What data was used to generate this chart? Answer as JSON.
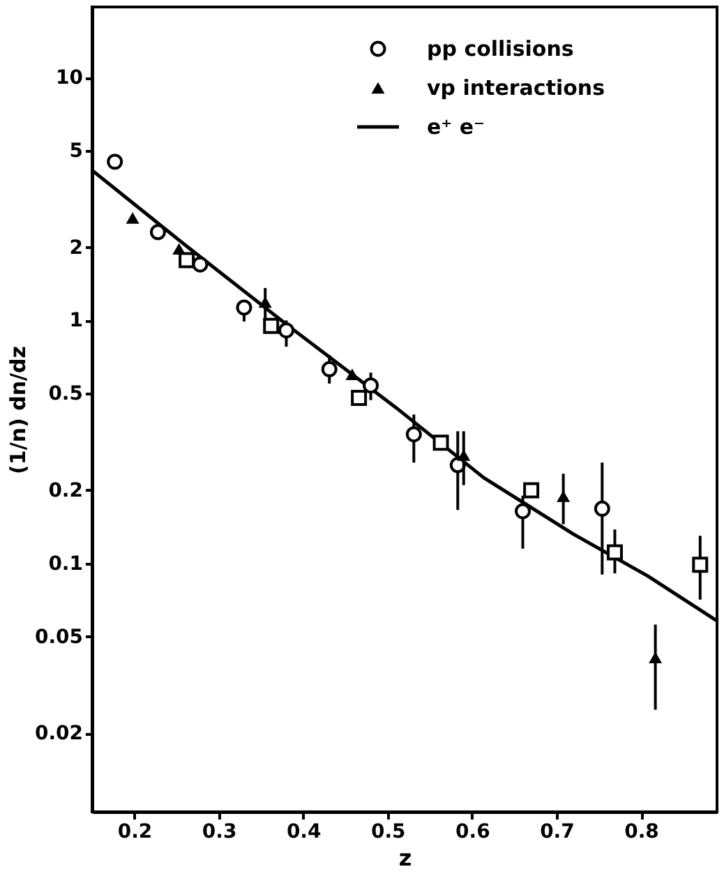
{
  "chart_data": {
    "type": "scatter",
    "xlabel": "z",
    "ylabel": "(1/n) dn/dz",
    "xlim": [
      0.15,
      0.89
    ],
    "ylim": [
      0.0095,
      19.5
    ],
    "log": "y",
    "xticks": [
      0.2,
      0.3,
      0.4,
      0.5,
      0.6,
      0.7,
      0.8
    ],
    "yticks": [
      0.02,
      0.05,
      0.1,
      0.2,
      0.5,
      1,
      2,
      5,
      10
    ],
    "grid": false,
    "legend": "top right",
    "series": [
      {
        "name": "pp collisions",
        "marker": "circle",
        "color": "#000000",
        "x": [
          0.177,
          0.228,
          0.278,
          0.33,
          0.38,
          0.431,
          0.48,
          0.531,
          0.583,
          0.66,
          0.754
        ],
        "values": [
          4.5,
          2.31,
          1.7,
          1.13,
          0.91,
          0.63,
          0.54,
          0.34,
          0.254,
          0.164,
          0.168
        ],
        "errors": [
          null,
          null,
          null,
          [
            0.99,
            1.13
          ],
          [
            0.78,
            1.0
          ],
          [
            0.55,
            0.72
          ],
          [
            0.47,
            0.61
          ],
          [
            0.26,
            0.41
          ],
          [
            0.166,
            0.35
          ],
          [
            0.115,
            0.19
          ],
          [
            0.09,
            0.26
          ]
        ]
      },
      {
        "name": "vp interactions",
        "marker": "triangle",
        "color": "#000000",
        "x": [
          0.198,
          0.253,
          0.355,
          0.458,
          0.59,
          0.708,
          0.817
        ],
        "values": [
          2.64,
          1.97,
          1.19,
          0.6,
          0.279,
          0.189,
          0.041
        ],
        "errors": [
          null,
          null,
          [
            1.01,
            1.36
          ],
          null,
          [
            0.21,
            0.35
          ],
          [
            0.145,
            0.234
          ],
          [
            0.025,
            0.056
          ]
        ]
      },
      {
        "marker": "square",
        "color": "#000000",
        "x": [
          0.262,
          0.362,
          0.466,
          0.563,
          0.67,
          0.769,
          0.87
        ],
        "values": [
          1.77,
          0.95,
          0.48,
          0.314,
          0.2,
          0.111,
          0.0987
        ],
        "errors": [
          null,
          null,
          null,
          null,
          null,
          [
            0.091,
            0.138
          ],
          [
            0.071,
            0.13
          ]
        ]
      },
      {
        "name": "e⁺ e⁻",
        "type": "line",
        "marker": "none",
        "line_style": "solid",
        "color": "#000000",
        "x": [
          0.15,
          0.262,
          0.385,
          0.509,
          0.614,
          0.72,
          0.808,
          0.89
        ],
        "values": [
          4.15,
          2.02,
          0.935,
          0.44,
          0.225,
          0.132,
          0.0888,
          0.058
        ]
      }
    ]
  }
}
